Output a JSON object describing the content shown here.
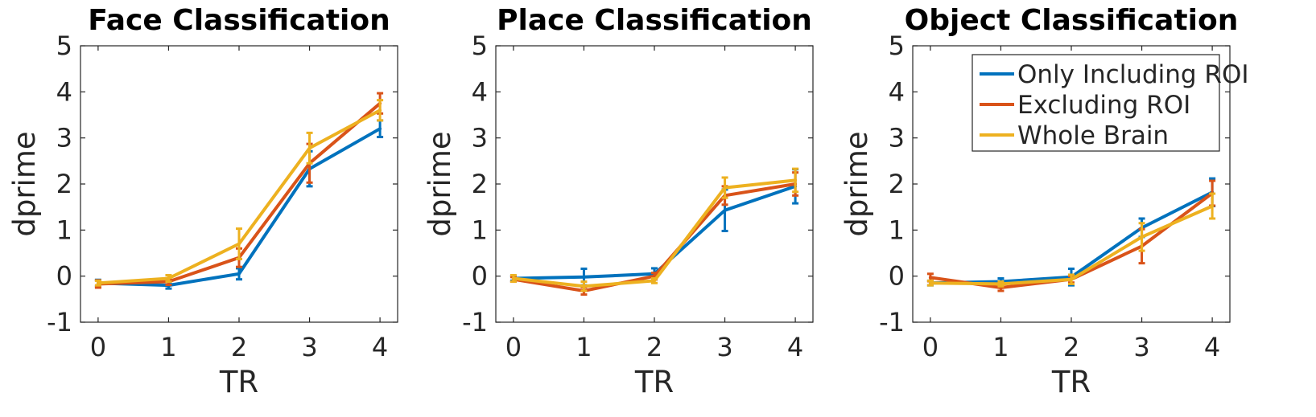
{
  "colors": {
    "only_including_roi": "#0072BD",
    "excluding_roi": "#D95319",
    "whole_brain": "#EDB120"
  },
  "chart_data": [
    {
      "type": "line",
      "title": "Face Classification",
      "xlabel": "TR",
      "ylabel": "dprime",
      "x": [
        0,
        1,
        2,
        3,
        4
      ],
      "xticks": [
        "0",
        "1",
        "2",
        "3",
        "4"
      ],
      "yticks": [
        "-1",
        "0",
        "1",
        "2",
        "3",
        "4",
        "5"
      ],
      "xlim": [
        -0.25,
        4.25
      ],
      "ylim": [
        -1,
        5
      ],
      "grid": false,
      "legend": null,
      "series": [
        {
          "name": "Only Including ROI",
          "values": [
            -0.15,
            -0.2,
            0.05,
            2.33,
            3.2
          ],
          "errors": [
            0.07,
            0.07,
            0.12,
            0.38,
            0.18
          ]
        },
        {
          "name": "Excluding ROI",
          "values": [
            -0.17,
            -0.12,
            0.4,
            2.45,
            3.75
          ],
          "errors": [
            0.08,
            0.07,
            0.2,
            0.42,
            0.22
          ]
        },
        {
          "name": "Whole Brain",
          "values": [
            -0.15,
            -0.05,
            0.7,
            2.78,
            3.6
          ],
          "errors": [
            0.05,
            0.07,
            0.33,
            0.33,
            0.22
          ]
        }
      ]
    },
    {
      "type": "line",
      "title": "Place Classification",
      "xlabel": "TR",
      "ylabel": "dprime",
      "x": [
        0,
        1,
        2,
        3,
        4
      ],
      "xticks": [
        "0",
        "1",
        "2",
        "3",
        "4"
      ],
      "yticks": [
        "-1",
        "0",
        "1",
        "2",
        "3",
        "4",
        "5"
      ],
      "xlim": [
        -0.25,
        4.25
      ],
      "ylim": [
        -1,
        5
      ],
      "grid": false,
      "legend": null,
      "series": [
        {
          "name": "Only Including ROI",
          "values": [
            -0.05,
            -0.02,
            0.05,
            1.43,
            1.95
          ],
          "errors": [
            0.05,
            0.18,
            0.12,
            0.45,
            0.37
          ]
        },
        {
          "name": "Excluding ROI",
          "values": [
            -0.07,
            -0.32,
            0.0,
            1.75,
            2.0
          ],
          "errors": [
            0.05,
            0.08,
            0.07,
            0.2,
            0.25
          ]
        },
        {
          "name": "Whole Brain",
          "values": [
            -0.05,
            -0.22,
            -0.1,
            1.92,
            2.08
          ],
          "errors": [
            0.07,
            0.1,
            0.05,
            0.22,
            0.25
          ]
        }
      ]
    },
    {
      "type": "line",
      "title": "Object Classification",
      "xlabel": "TR",
      "ylabel": "dprime",
      "x": [
        0,
        1,
        2,
        3,
        4
      ],
      "xticks": [
        "0",
        "1",
        "2",
        "3",
        "4"
      ],
      "yticks": [
        "-1",
        "0",
        "1",
        "2",
        "3",
        "4",
        "5"
      ],
      "xlim": [
        -0.25,
        4.25
      ],
      "ylim": [
        -1,
        5
      ],
      "grid": false,
      "legend": "top-right",
      "series": [
        {
          "name": "Only Including ROI",
          "values": [
            -0.15,
            -0.12,
            -0.02,
            1.05,
            1.82
          ],
          "errors": [
            0.05,
            0.07,
            0.18,
            0.2,
            0.3
          ]
        },
        {
          "name": "Excluding ROI",
          "values": [
            -0.03,
            -0.25,
            -0.07,
            0.65,
            1.8
          ],
          "errors": [
            0.08,
            0.07,
            0.07,
            0.37,
            0.27
          ]
        },
        {
          "name": "Whole Brain",
          "values": [
            -0.15,
            -0.17,
            -0.07,
            0.85,
            1.52
          ],
          "errors": [
            0.05,
            0.05,
            0.1,
            0.3,
            0.27
          ]
        }
      ]
    }
  ]
}
